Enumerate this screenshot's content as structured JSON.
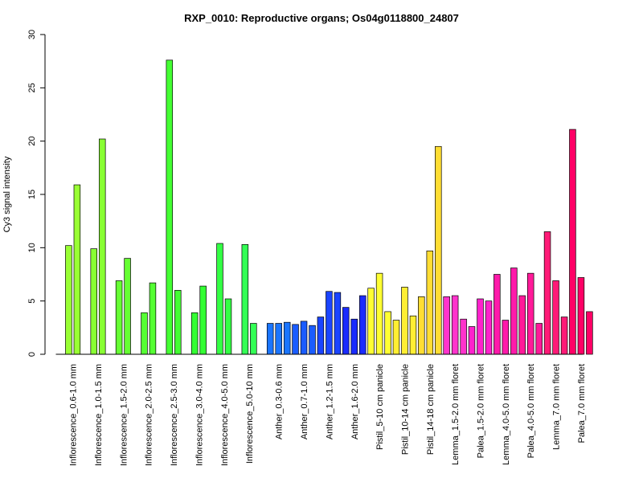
{
  "chart_data": {
    "type": "bar",
    "title": "RXP_0010: Reproductive organs; Os04g0118800_24807",
    "xlabel": "",
    "ylabel": "Cy3 signal intensity",
    "ylim": [
      0,
      30
    ],
    "yticks": [
      0,
      5,
      10,
      15,
      20,
      25,
      30
    ],
    "grid": false,
    "legend": "none",
    "groups": [
      {
        "label": "Inflorescence_0.6-1.0 mm",
        "color": "#99ff33",
        "values": [
          10.2,
          15.9
        ]
      },
      {
        "label": "Inflorescence_1.0-1.5 mm",
        "color": "#88ff33",
        "values": [
          9.9,
          20.2
        ]
      },
      {
        "label": "Inflorescence_1.5-2.0 mm",
        "color": "#66ff33",
        "values": [
          6.9,
          9.0
        ]
      },
      {
        "label": "Inflorescence_2.0-2.5 mm",
        "color": "#55ff33",
        "values": [
          3.9,
          6.7
        ]
      },
      {
        "label": "Inflorescence_2.5-3.0 mm",
        "color": "#44ff33",
        "values": [
          27.6,
          6.0
        ]
      },
      {
        "label": "Inflorescence_3.0-4.0 mm",
        "color": "#33ff33",
        "values": [
          3.9,
          6.4
        ]
      },
      {
        "label": "Inflorescence_4.0-5.0 mm",
        "color": "#33ff44",
        "values": [
          10.4,
          5.2
        ]
      },
      {
        "label": "Inflorescence_5.0-10 mm",
        "color": "#33ff55",
        "values": [
          10.3,
          2.9
        ]
      },
      {
        "label": "Anther_0.3-0.6 mm",
        "color": "#1a75ff",
        "values": [
          2.9,
          2.9,
          3.0
        ]
      },
      {
        "label": "Anther_0.7-1.0 mm",
        "color": "#1a5cff",
        "values": [
          2.8,
          3.1,
          2.7
        ]
      },
      {
        "label": "Anther_1.2-1.5 mm",
        "color": "#1a44ff",
        "values": [
          3.5,
          5.9,
          5.8
        ]
      },
      {
        "label": "Anther_1.6-2.0 mm",
        "color": "#1a2bff",
        "values": [
          4.4,
          3.3,
          5.5
        ]
      },
      {
        "label": "Pistil_5-10 cm panicle",
        "color": "#ffff33",
        "values": [
          6.2,
          7.6,
          4.0
        ]
      },
      {
        "label": "Pistil_10-14 cm panicle",
        "color": "#ffee33",
        "values": [
          3.2,
          6.3,
          3.6
        ]
      },
      {
        "label": "Pistil_14-18 cm panicle",
        "color": "#ffdd33",
        "values": [
          5.4,
          9.7,
          19.5
        ]
      },
      {
        "label": "Lemma_1.5-2.0 mm floret",
        "color": "#ff33cc",
        "values": [
          5.4,
          5.5,
          3.3
        ]
      },
      {
        "label": "Palea_1.5-2.0 mm floret",
        "color": "#ff22cc",
        "values": [
          2.6,
          5.2,
          5.0
        ]
      },
      {
        "label": "Lemma_4.0-5.0 mm floret",
        "color": "#ff1aaa",
        "values": [
          7.5,
          3.2,
          8.1
        ]
      },
      {
        "label": "Palea_4.0-5.0 mm floret",
        "color": "#ff1a99",
        "values": [
          5.5,
          7.6,
          2.9
        ]
      },
      {
        "label": "Lemma_7.0 mm floret",
        "color": "#ff1a77",
        "values": [
          11.5,
          6.9,
          3.5
        ]
      },
      {
        "label": "Palea_7.0 mm floret",
        "color": "#ff0066",
        "values": [
          21.1,
          7.2,
          4.0
        ]
      }
    ]
  }
}
